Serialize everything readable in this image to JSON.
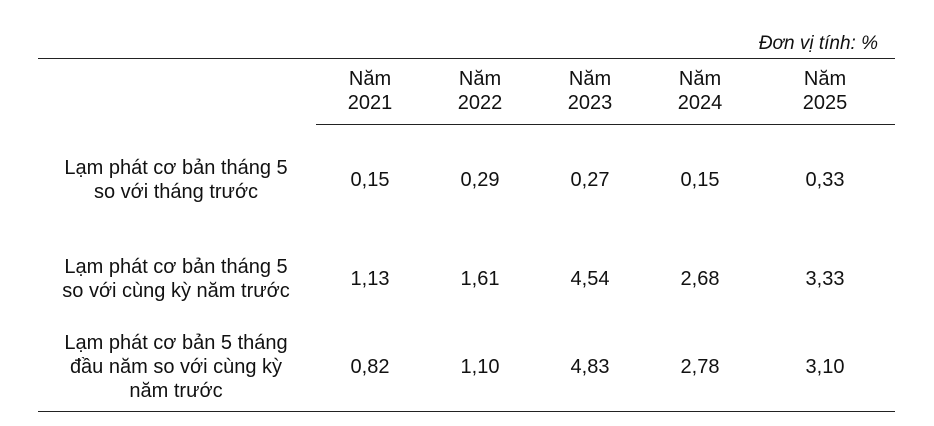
{
  "unit": "Đơn vị tính: %",
  "table": {
    "columns": [
      [
        "Năm",
        "2021"
      ],
      [
        "Năm",
        "2022"
      ],
      [
        "Năm",
        "2023"
      ],
      [
        "Năm",
        "2024"
      ],
      [
        "Năm",
        "2025"
      ]
    ],
    "rows": [
      {
        "label": [
          "Lạm phát cơ bản tháng 5",
          "so với tháng trước"
        ],
        "values": [
          "0,15",
          "0,29",
          "0,27",
          "0,15",
          "0,33"
        ]
      },
      {
        "label": [
          "Lạm phát cơ bản tháng 5",
          "so với cùng kỳ năm trước"
        ],
        "values": [
          "1,13",
          "1,61",
          "4,54",
          "2,68",
          "3,33"
        ]
      },
      {
        "label": [
          "Lạm phát cơ bản 5 tháng",
          "đầu năm so với cùng kỳ",
          "năm trước"
        ],
        "values": [
          "0,82",
          "1,10",
          "4,83",
          "2,78",
          "3,10"
        ]
      }
    ]
  }
}
